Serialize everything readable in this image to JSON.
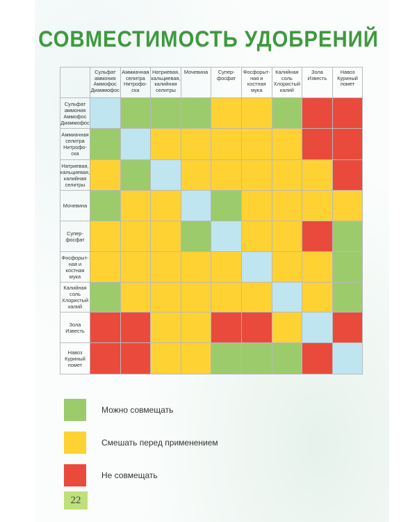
{
  "title": "СОВМЕСТИМОСТЬ УДОБРЕНИЙ",
  "colors": {
    "green": "#9ccb6c",
    "yellow": "#ffd234",
    "red": "#ea4a3c",
    "blue": "#bfe5f0",
    "title": "#3c9a3c",
    "page_tab": "#bfe07a"
  },
  "table": {
    "columns": [
      "Сульфат\nаммония\nАммофос\nДиаммофос",
      "Аммиачная\nселитра\nНитрофо-\nска",
      "Натриевая,\nкальциевая,\nкалийная\nселитры",
      "Мочевина",
      "Супер-\nфосфат",
      "Фосфорыт-\nная и\nкостная\nмука",
      "Калийная\nсоль\nХлористый\nкалий",
      "Зола\nИзвесть",
      "Навоз\nКуриный\nпомет"
    ],
    "rows": [
      {
        "label": "Сульфат\nаммония\nАммофос\nДиаммофос",
        "cells": [
          "blue",
          "green",
          "green",
          "green",
          "yellow",
          "yellow",
          "green",
          "red",
          "red"
        ]
      },
      {
        "label": "Аммиачная\nселитра\nНитрофо-\nска",
        "cells": [
          "green",
          "blue",
          "yellow",
          "yellow",
          "yellow",
          "yellow",
          "yellow",
          "red",
          "red"
        ]
      },
      {
        "label": "Натриевая,\nкальциевая,\nкалийная\nселитры",
        "cells": [
          "yellow",
          "green",
          "blue",
          "yellow",
          "yellow",
          "yellow",
          "yellow",
          "yellow",
          "red"
        ]
      },
      {
        "label": "Мочевина",
        "cells": [
          "green",
          "yellow",
          "yellow",
          "blue",
          "green",
          "yellow",
          "yellow",
          "yellow",
          "yellow"
        ]
      },
      {
        "label": "Супер-\nфосфат",
        "cells": [
          "yellow",
          "yellow",
          "yellow",
          "green",
          "blue",
          "yellow",
          "yellow",
          "red",
          "green"
        ]
      },
      {
        "label": "Фосфорыт-\nная и\nкостная\nмука",
        "cells": [
          "yellow",
          "yellow",
          "yellow",
          "yellow",
          "yellow",
          "blue",
          "yellow",
          "yellow",
          "green"
        ]
      },
      {
        "label": "Калийная\nсоль\nХлористый\nкалий",
        "cells": [
          "green",
          "yellow",
          "yellow",
          "yellow",
          "yellow",
          "yellow",
          "blue",
          "yellow",
          "green"
        ]
      },
      {
        "label": "Зола\nИзвесть",
        "cells": [
          "red",
          "red",
          "yellow",
          "yellow",
          "red",
          "red",
          "yellow",
          "blue",
          "red"
        ]
      },
      {
        "label": "Навоз\nКуриный\nпомет",
        "cells": [
          "red",
          "red",
          "yellow",
          "yellow",
          "green",
          "green",
          "green",
          "red",
          "blue"
        ]
      }
    ]
  },
  "legend": [
    {
      "color": "green",
      "label": "Можно совмещать"
    },
    {
      "color": "yellow",
      "label": "Смешать перед применением"
    },
    {
      "color": "red",
      "label": "Не совмещать"
    }
  ],
  "page_number": "22"
}
